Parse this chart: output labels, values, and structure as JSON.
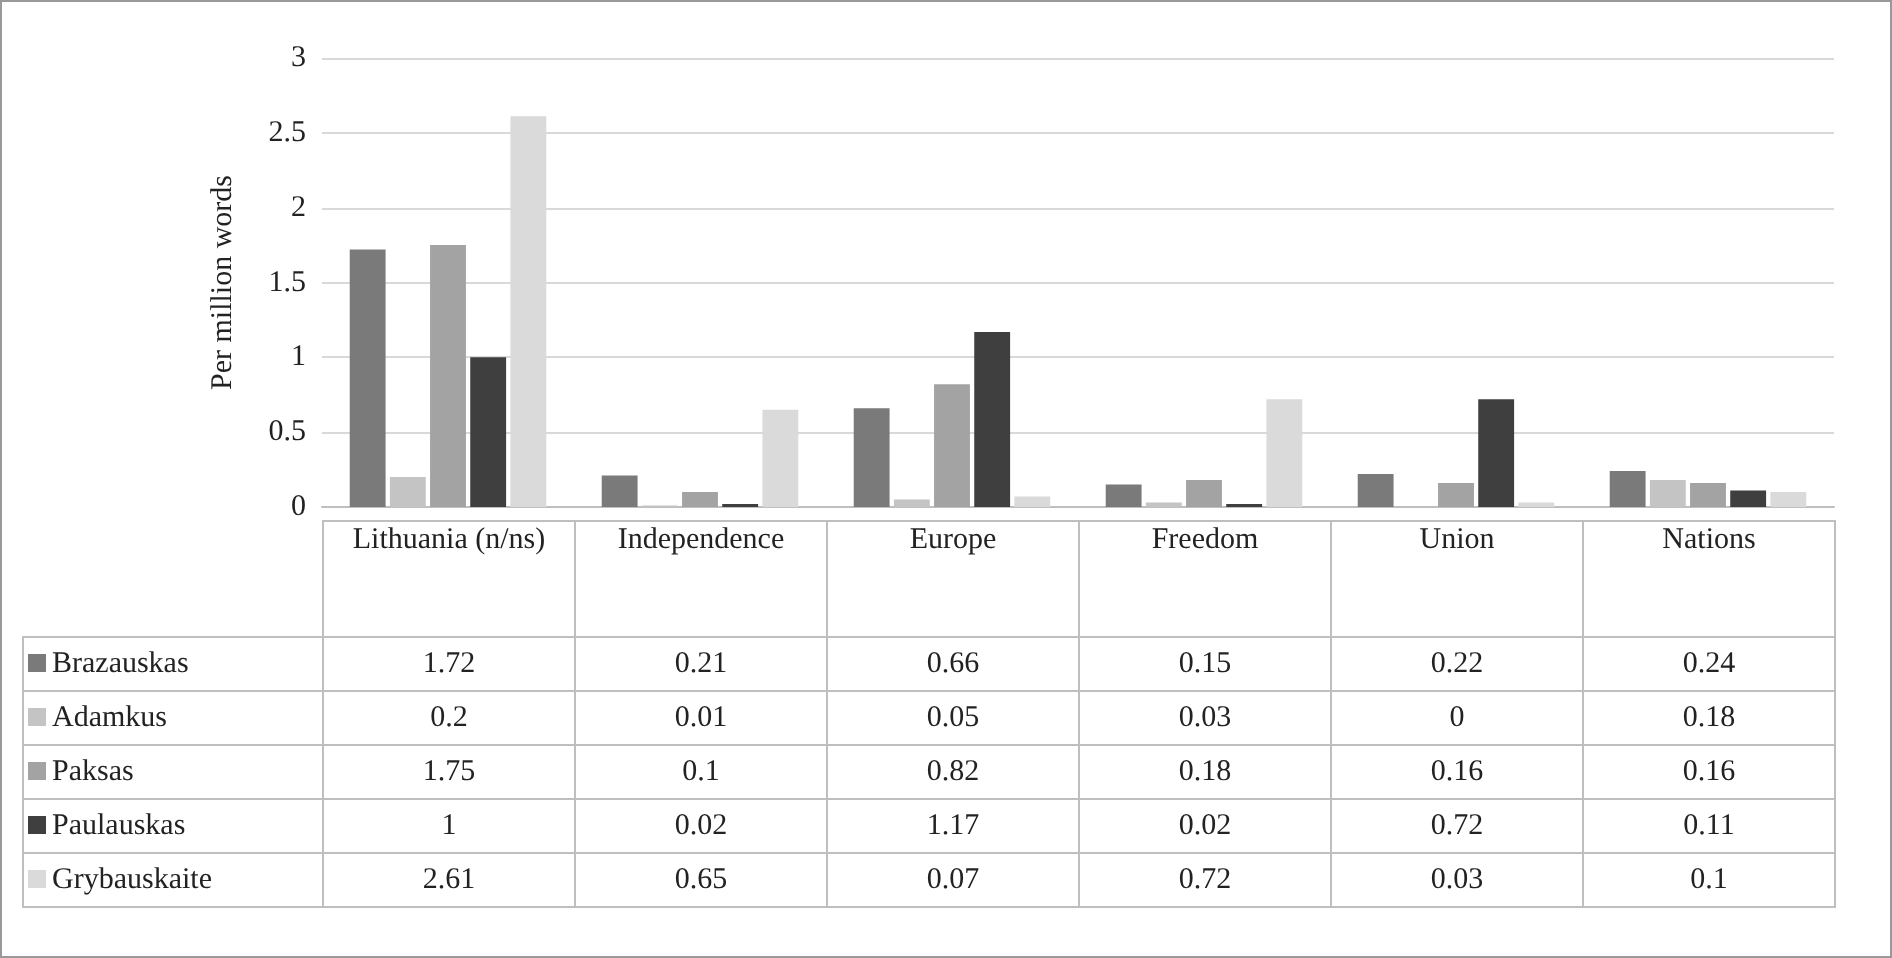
{
  "chart_data": {
    "type": "bar",
    "ylabel": "Per million words",
    "categories": [
      "Lithuania (n/ns)",
      "Independence",
      "Europe",
      "Freedom",
      "Union",
      "Nations"
    ],
    "series": [
      {
        "name": "Brazauskas",
        "color": "#7a7a7a",
        "values": [
          1.72,
          0.21,
          0.66,
          0.15,
          0.22,
          0.24
        ]
      },
      {
        "name": "Adamkus",
        "color": "#c4c4c4",
        "values": [
          0.2,
          0.01,
          0.05,
          0.03,
          0,
          0.18
        ]
      },
      {
        "name": "Paksas",
        "color": "#a3a3a3",
        "values": [
          1.75,
          0.1,
          0.82,
          0.18,
          0.16,
          0.16
        ]
      },
      {
        "name": "Paulauskas",
        "color": "#3f3f3f",
        "values": [
          1,
          0.02,
          1.17,
          0.02,
          0.72,
          0.11
        ]
      },
      {
        "name": "Grybauskaite",
        "color": "#dadada",
        "values": [
          2.61,
          0.65,
          0.07,
          0.72,
          0.03,
          0.1
        ]
      }
    ],
    "ylim": [
      0,
      3
    ],
    "yticks": [
      0,
      0.5,
      1,
      1.5,
      2,
      2.5,
      3
    ],
    "grid": "y",
    "legend": "bottom left",
    "data_labels": true
  }
}
